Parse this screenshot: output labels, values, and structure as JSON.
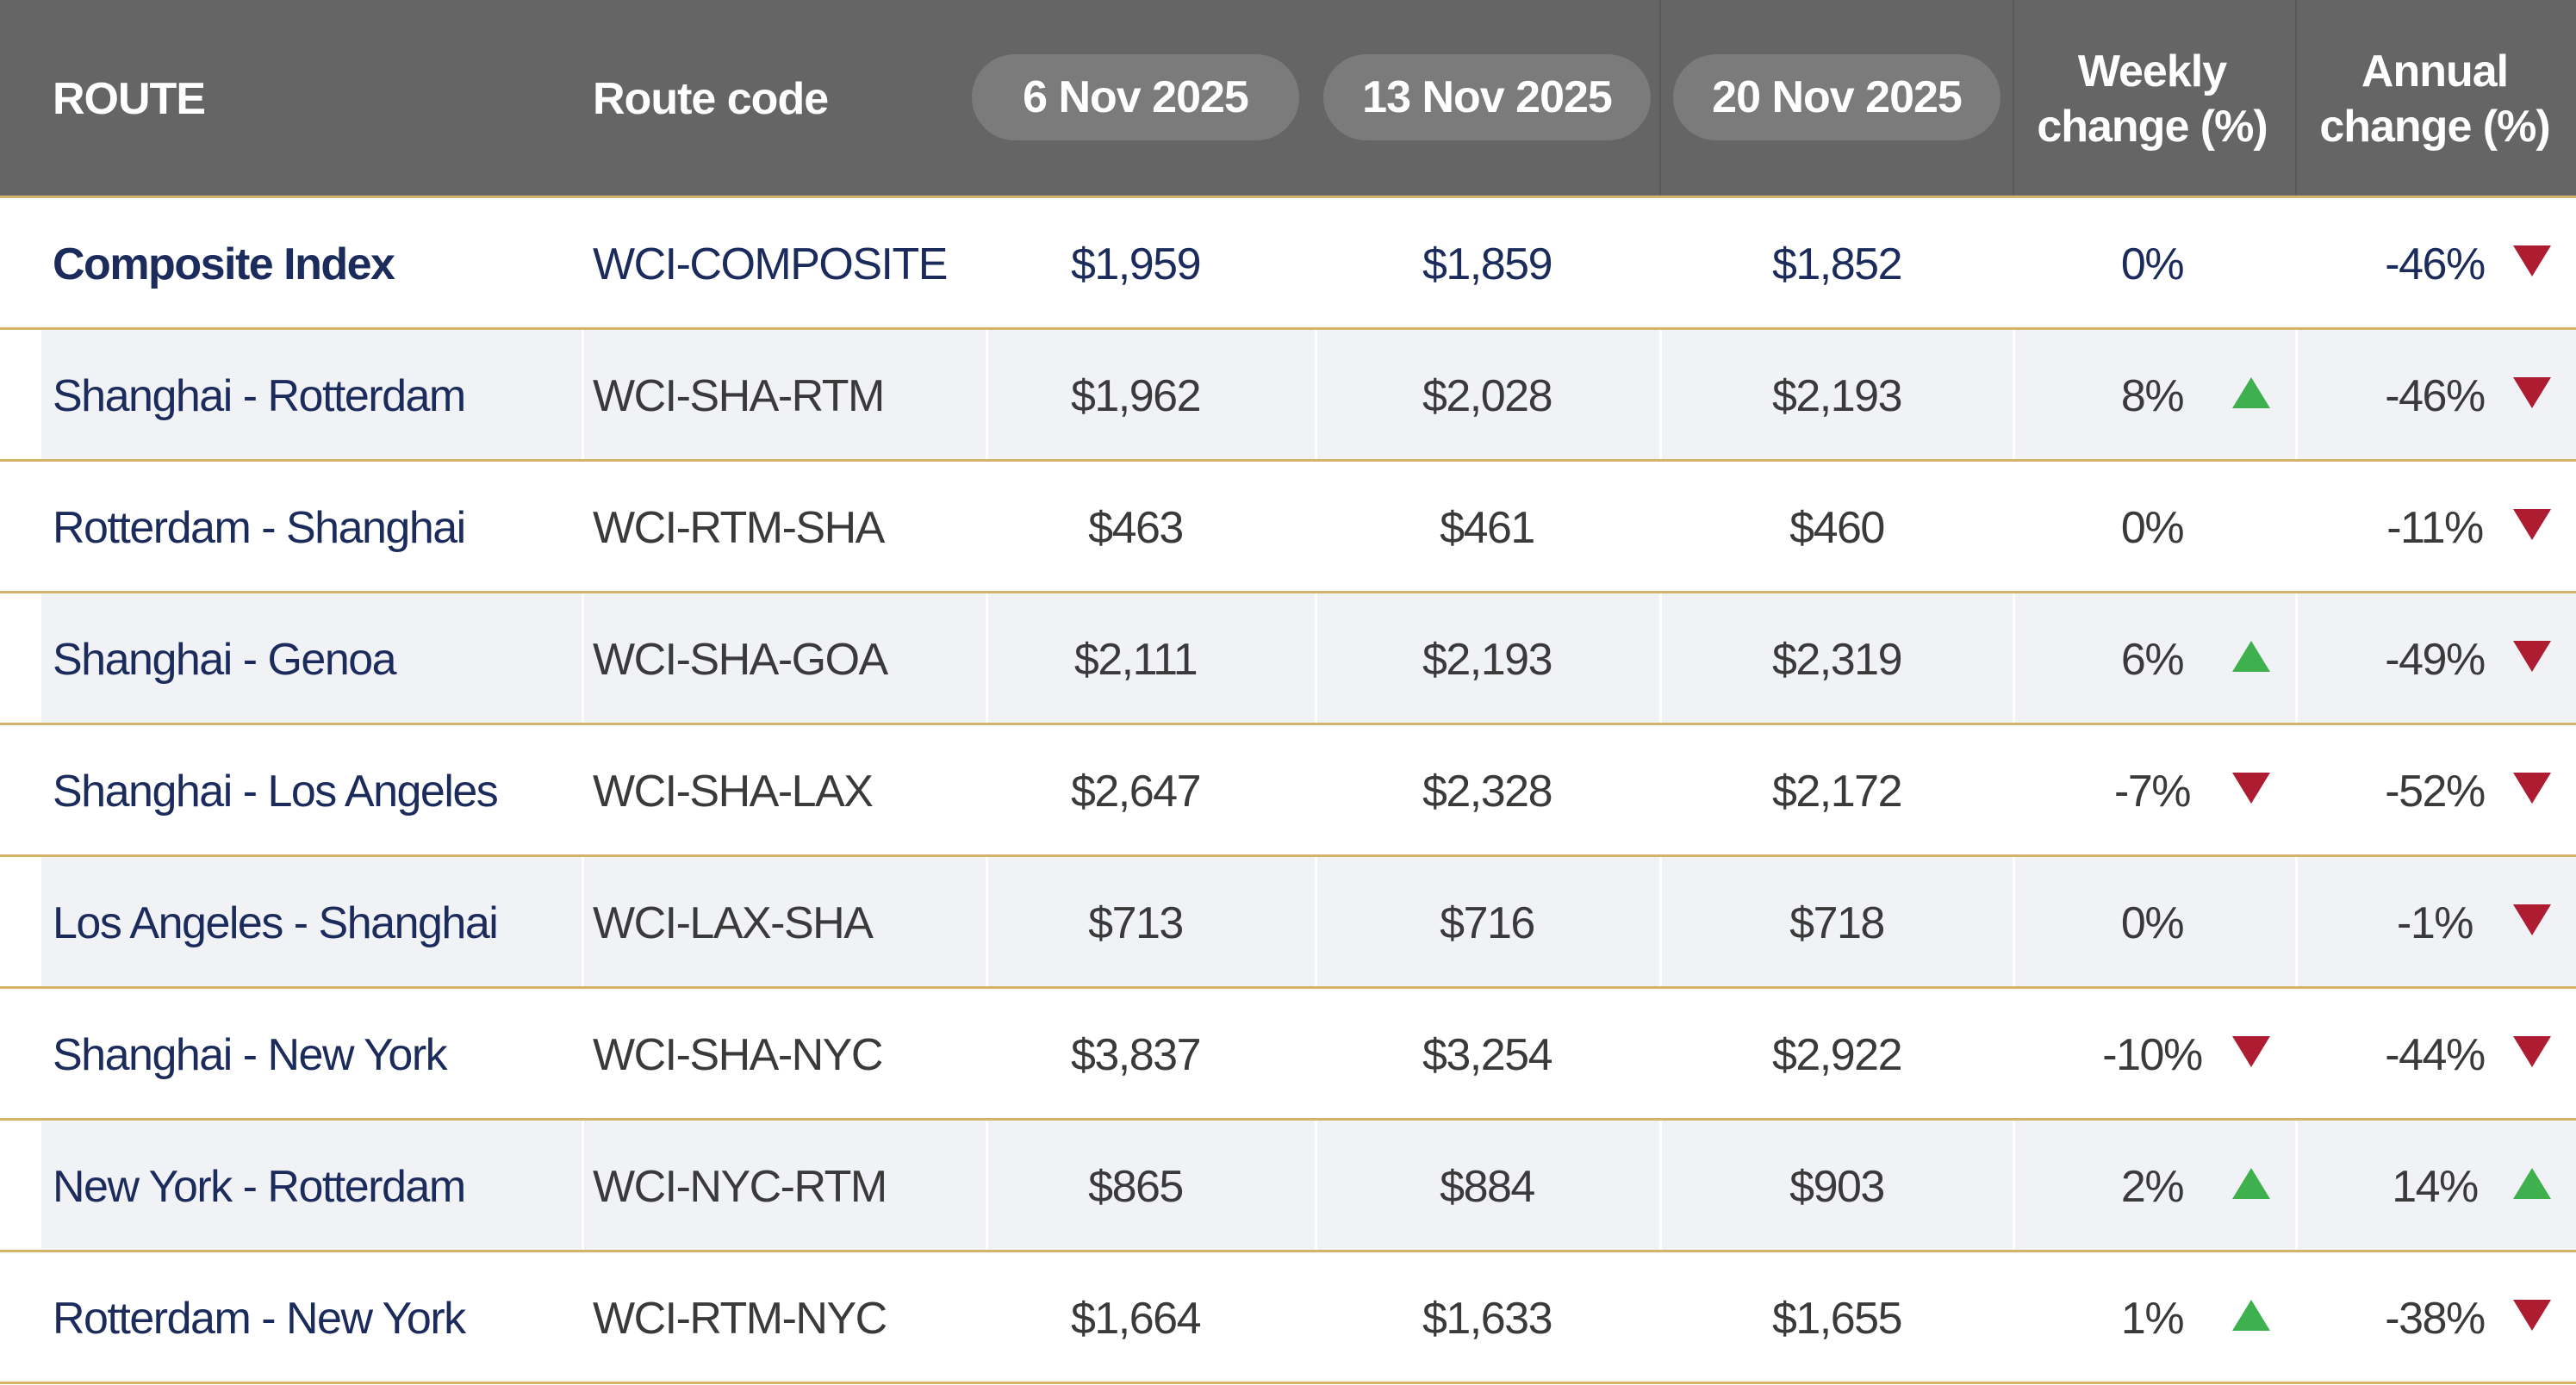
{
  "header": {
    "columns": [
      "ROUTE",
      "Route code",
      "6 Nov 2025",
      "13 Nov 2025",
      "20 Nov 2025",
      "Weekly change (%)",
      "Annual change (%)"
    ]
  },
  "rows": [
    {
      "cells": [
        "Composite Index",
        "WCI-COMPOSITE",
        "$1,959",
        "$1,859",
        "$1,852",
        "0%",
        "-46%"
      ],
      "weekly_arrow": null,
      "annual_arrow": "down"
    },
    {
      "cells": [
        "Shanghai - Rotterdam",
        "WCI-SHA-RTM",
        "$1,962",
        "$2,028",
        "$2,193",
        "8%",
        "-46%"
      ],
      "weekly_arrow": "up",
      "annual_arrow": "down"
    },
    {
      "cells": [
        "Rotterdam - Shanghai",
        "WCI-RTM-SHA",
        "$463",
        "$461",
        "$460",
        "0%",
        "-11%"
      ],
      "weekly_arrow": null,
      "annual_arrow": "down"
    },
    {
      "cells": [
        "Shanghai - Genoa",
        "WCI-SHA-GOA",
        "$2,111",
        "$2,193",
        "$2,319",
        "6%",
        "-49%"
      ],
      "weekly_arrow": "up",
      "annual_arrow": "down"
    },
    {
      "cells": [
        "Shanghai - Los Angeles",
        "WCI-SHA-LAX",
        "$2,647",
        "$2,328",
        "$2,172",
        "-7%",
        "-52%"
      ],
      "weekly_arrow": "down",
      "annual_arrow": "down"
    },
    {
      "cells": [
        "Los Angeles - Shanghai",
        "WCI-LAX-SHA",
        "$713",
        "$716",
        "$718",
        "0%",
        "-1%"
      ],
      "weekly_arrow": null,
      "annual_arrow": "down"
    },
    {
      "cells": [
        "Shanghai - New York",
        "WCI-SHA-NYC",
        "$3,837",
        "$3,254",
        "$2,922",
        "-10%",
        "-44%"
      ],
      "weekly_arrow": "down",
      "annual_arrow": "down"
    },
    {
      "cells": [
        "New York - Rotterdam",
        "WCI-NYC-RTM",
        "$865",
        "$884",
        "$903",
        "2%",
        "14%"
      ],
      "weekly_arrow": "up",
      "annual_arrow": "up"
    },
    {
      "cells": [
        "Rotterdam - New York",
        "WCI-RTM-NYC",
        "$1,664",
        "$1,633",
        "$1,655",
        "1%",
        "-38%"
      ],
      "weekly_arrow": "up",
      "annual_arrow": "down"
    }
  ]
}
